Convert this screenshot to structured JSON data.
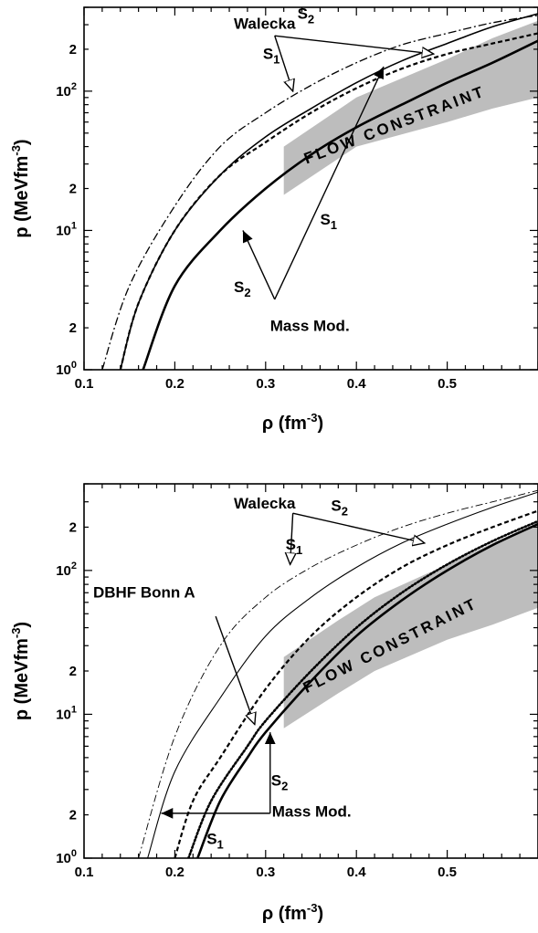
{
  "chart_data": [
    {
      "type": "line",
      "xlabel": "ρ (fm",
      "xlabel_sup": "-3",
      "xlabel_close": ")",
      "ylabel": "p (MeVfm",
      "ylabel_sup": "-3",
      "ylabel_close": ")",
      "xlim": [
        0.1,
        0.6
      ],
      "ylim": [
        1,
        400
      ],
      "yscale": "log",
      "xticks": [
        {
          "v": 0.1,
          "label": "0.1"
        },
        {
          "v": 0.2,
          "label": "0.2"
        },
        {
          "v": 0.3,
          "label": "0.3"
        },
        {
          "v": 0.4,
          "label": "0.4"
        },
        {
          "v": 0.5,
          "label": "0.5"
        }
      ],
      "yticks": [
        {
          "v": 1,
          "base": "10",
          "exp": "0"
        },
        {
          "v": 2,
          "base": "2",
          "exp": ""
        },
        {
          "v": 10,
          "base": "10",
          "exp": "1"
        },
        {
          "v": 20,
          "base": "2",
          "exp": ""
        },
        {
          "v": 100,
          "base": "10",
          "exp": "2"
        },
        {
          "v": 200,
          "base": "2",
          "exp": ""
        }
      ],
      "band": {
        "label": "FLOW CONSTRAINT",
        "upper": [
          [
            0.32,
            40
          ],
          [
            0.4,
            90
          ],
          [
            0.5,
            170
          ],
          [
            0.55,
            240
          ],
          [
            0.6,
            320
          ]
        ],
        "lower": [
          [
            0.32,
            18
          ],
          [
            0.4,
            40
          ],
          [
            0.5,
            60
          ],
          [
            0.55,
            75
          ],
          [
            0.6,
            90
          ]
        ]
      },
      "series": [
        {
          "key": "walecka_s2",
          "style": "dashdot",
          "points": [
            [
              0.12,
              1
            ],
            [
              0.15,
              4
            ],
            [
              0.2,
              15
            ],
            [
              0.25,
              40
            ],
            [
              0.3,
              70
            ],
            [
              0.35,
              110
            ],
            [
              0.4,
              160
            ],
            [
              0.45,
              215
            ],
            [
              0.5,
              260
            ],
            [
              0.55,
              310
            ],
            [
              0.6,
              350
            ]
          ]
        },
        {
          "key": "walecka_s1",
          "style": "solid",
          "points": [
            [
              0.14,
              1
            ],
            [
              0.16,
              3
            ],
            [
              0.2,
              10
            ],
            [
              0.25,
              25
            ],
            [
              0.3,
              47
            ],
            [
              0.35,
              75
            ],
            [
              0.4,
              115
            ],
            [
              0.45,
              165
            ],
            [
              0.5,
              220
            ],
            [
              0.55,
              290
            ],
            [
              0.6,
              360
            ]
          ]
        },
        {
          "key": "dashed",
          "style": "dashed",
          "points": [
            [
              0.14,
              1
            ],
            [
              0.16,
              3
            ],
            [
              0.2,
              10
            ],
            [
              0.25,
              25
            ],
            [
              0.3,
              43
            ],
            [
              0.35,
              70
            ],
            [
              0.4,
              105
            ],
            [
              0.45,
              145
            ],
            [
              0.5,
              185
            ],
            [
              0.55,
              220
            ],
            [
              0.6,
              260
            ]
          ]
        },
        {
          "key": "mass_mod",
          "style": "bold",
          "points": [
            [
              0.165,
              1
            ],
            [
              0.2,
              4
            ],
            [
              0.25,
              10
            ],
            [
              0.3,
              20
            ],
            [
              0.35,
              35
            ],
            [
              0.4,
              55
            ],
            [
              0.45,
              80
            ],
            [
              0.5,
              115
            ],
            [
              0.55,
              160
            ],
            [
              0.6,
              230
            ]
          ]
        }
      ],
      "annotations": [
        {
          "text": "Walecka",
          "x": 0.265,
          "y": 280,
          "sub": ""
        },
        {
          "text": "S",
          "x": 0.335,
          "y": 330,
          "sub": "2"
        },
        {
          "text": "S",
          "x": 0.297,
          "y": 170,
          "sub": "1"
        },
        {
          "text": "S",
          "x": 0.36,
          "y": 11,
          "sub": "1"
        },
        {
          "text": "S",
          "x": 0.265,
          "y": 3.6,
          "sub": "2"
        },
        {
          "text": "Mass Mod.",
          "x": 0.305,
          "y": 1.9,
          "sub": ""
        }
      ],
      "arrows": [
        {
          "from": [
            0.31,
            250
          ],
          "to": [
            0.33,
            100
          ],
          "head": "open"
        },
        {
          "from": [
            0.31,
            250
          ],
          "to": [
            0.485,
            185
          ],
          "head": "open"
        },
        {
          "from": [
            0.31,
            3.2
          ],
          "to": [
            0.275,
            10
          ],
          "head": "filled"
        },
        {
          "from": [
            0.31,
            3.2
          ],
          "to": [
            0.43,
            150
          ],
          "head": "filled"
        }
      ]
    },
    {
      "type": "line",
      "xlabel": "ρ (fm",
      "xlabel_sup": "-3",
      "xlabel_close": ")",
      "ylabel": "p (MeVfm",
      "ylabel_sup": "-3",
      "ylabel_close": ")",
      "xlim": [
        0.1,
        0.6
      ],
      "ylim": [
        1,
        400
      ],
      "yscale": "log",
      "xticks": [
        {
          "v": 0.1,
          "label": "0.1"
        },
        {
          "v": 0.2,
          "label": "0.2"
        },
        {
          "v": 0.3,
          "label": "0.3"
        },
        {
          "v": 0.4,
          "label": "0.4"
        },
        {
          "v": 0.5,
          "label": "0.5"
        }
      ],
      "yticks": [
        {
          "v": 1,
          "base": "10",
          "exp": "0"
        },
        {
          "v": 2,
          "base": "2",
          "exp": ""
        },
        {
          "v": 10,
          "base": "10",
          "exp": "1"
        },
        {
          "v": 20,
          "base": "2",
          "exp": ""
        },
        {
          "v": 100,
          "base": "10",
          "exp": "2"
        },
        {
          "v": 200,
          "base": "2",
          "exp": ""
        }
      ],
      "band": {
        "label": "FLOW CONSTRAINT",
        "upper": [
          [
            0.32,
            25
          ],
          [
            0.38,
            45
          ],
          [
            0.42,
            65
          ],
          [
            0.5,
            110
          ],
          [
            0.55,
            155
          ],
          [
            0.6,
            210
          ]
        ],
        "lower": [
          [
            0.32,
            8
          ],
          [
            0.38,
            14
          ],
          [
            0.42,
            20
          ],
          [
            0.5,
            33
          ],
          [
            0.55,
            42
          ],
          [
            0.6,
            55
          ]
        ]
      },
      "series": [
        {
          "key": "walecka_s2",
          "style": "dashdot-thin",
          "points": [
            [
              0.16,
              1
            ],
            [
              0.2,
              7
            ],
            [
              0.25,
              30
            ],
            [
              0.3,
              65
            ],
            [
              0.35,
              105
            ],
            [
              0.4,
              150
            ],
            [
              0.45,
              200
            ],
            [
              0.5,
              250
            ],
            [
              0.55,
              300
            ],
            [
              0.6,
              360
            ]
          ]
        },
        {
          "key": "walecka_s1",
          "style": "solid-thin",
          "points": [
            [
              0.17,
              1
            ],
            [
              0.2,
              4
            ],
            [
              0.25,
              13
            ],
            [
              0.3,
              35
            ],
            [
              0.35,
              65
            ],
            [
              0.4,
              105
            ],
            [
              0.45,
              155
            ],
            [
              0.5,
              210
            ],
            [
              0.55,
              275
            ],
            [
              0.6,
              350
            ]
          ]
        },
        {
          "key": "dbhf",
          "style": "dashed",
          "points": [
            [
              0.2,
              1
            ],
            [
              0.22,
              2.5
            ],
            [
              0.25,
              5
            ],
            [
              0.3,
              15
            ],
            [
              0.35,
              35
            ],
            [
              0.4,
              65
            ],
            [
              0.45,
              105
            ],
            [
              0.5,
              150
            ],
            [
              0.55,
              200
            ],
            [
              0.6,
              260
            ]
          ]
        },
        {
          "key": "dotted",
          "style": "dotted",
          "points": [
            [
              0.215,
              1
            ],
            [
              0.24,
              2.5
            ],
            [
              0.28,
              6
            ],
            [
              0.3,
              9
            ],
            [
              0.35,
              20
            ],
            [
              0.4,
              40
            ],
            [
              0.45,
              70
            ],
            [
              0.5,
              110
            ],
            [
              0.55,
              160
            ],
            [
              0.6,
              220
            ]
          ]
        },
        {
          "key": "mass_mod",
          "style": "bold",
          "points": [
            [
              0.225,
              1
            ],
            [
              0.25,
              2.5
            ],
            [
              0.28,
              5
            ],
            [
              0.3,
              7.5
            ],
            [
              0.35,
              17
            ],
            [
              0.4,
              35
            ],
            [
              0.45,
              62
            ],
            [
              0.5,
              100
            ],
            [
              0.55,
              150
            ],
            [
              0.6,
              210
            ]
          ]
        }
      ],
      "annotations": [
        {
          "text": "Walecka",
          "x": 0.265,
          "y": 270,
          "sub": ""
        },
        {
          "text": "S",
          "x": 0.372,
          "y": 260,
          "sub": "2"
        },
        {
          "text": "S",
          "x": 0.322,
          "y": 140,
          "sub": "1"
        },
        {
          "text": "DBHF Bonn A",
          "x": 0.11,
          "y": 65,
          "sub": ""
        },
        {
          "text": "S",
          "x": 0.306,
          "y": 3.2,
          "sub": "2"
        },
        {
          "text": "Mass Mod.",
          "x": 0.307,
          "y": 1.95,
          "sub": ""
        },
        {
          "text": "S",
          "x": 0.235,
          "y": 1.25,
          "sub": "1"
        }
      ],
      "arrows": [
        {
          "from": [
            0.33,
            250
          ],
          "to": [
            0.327,
            110
          ],
          "head": "open"
        },
        {
          "from": [
            0.33,
            250
          ],
          "to": [
            0.475,
            155
          ],
          "head": "open"
        },
        {
          "from": [
            0.245,
            48
          ],
          "to": [
            0.288,
            8.5
          ],
          "head": "open"
        },
        {
          "from": [
            0.305,
            2.05
          ],
          "to": [
            0.305,
            7.5
          ],
          "head": "filled"
        },
        {
          "from": [
            0.305,
            2.05
          ],
          "to": [
            0.185,
            2.05
          ],
          "head": "filled"
        }
      ]
    }
  ]
}
